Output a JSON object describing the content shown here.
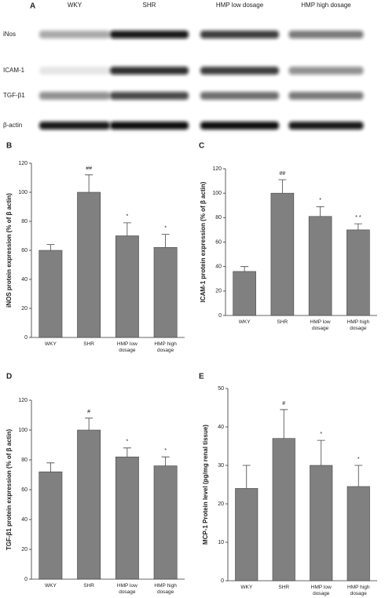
{
  "blot": {
    "panel": "A",
    "columns": [
      "WKY",
      "SHR",
      "HMP low dosage",
      "HMP high dosage"
    ],
    "rows": [
      "iNos",
      "ICAM-1",
      "TGF-β1",
      "β-actin"
    ]
  },
  "chart_data": [
    {
      "type": "bar",
      "panel": "B",
      "ylabel": "iNOS protein expression (% of β actin)",
      "categories": [
        "WKY",
        "SHR",
        "HMP low dosage",
        "HMP high dosage"
      ],
      "values": [
        60,
        100,
        70,
        62
      ],
      "errors": [
        4,
        12,
        9,
        9
      ],
      "annotations": [
        null,
        "##",
        "*",
        "*"
      ],
      "color": "#808080",
      "ylim": [
        0,
        120
      ],
      "yticks": [
        0,
        20,
        40,
        60,
        80,
        100,
        120
      ]
    },
    {
      "type": "bar",
      "panel": "C",
      "ylabel": "ICAM-1 protein expression (% of β actin)",
      "categories": [
        "WKY",
        "SHR",
        "HMP low dosage",
        "HMP high dosage"
      ],
      "values": [
        36,
        100,
        81,
        70
      ],
      "errors": [
        4,
        11,
        8,
        5
      ],
      "annotations": [
        null,
        "##",
        "*",
        "* *"
      ],
      "color": "#808080",
      "ylim": [
        0,
        120
      ],
      "yticks": [
        0,
        20,
        40,
        60,
        80,
        100,
        120
      ]
    },
    {
      "type": "bar",
      "panel": "D",
      "ylabel": "TGF-β1 protein expression (% of β actin)",
      "categories": [
        "WKY",
        "SHR",
        "HMP low dosage",
        "HMP high dosage"
      ],
      "values": [
        72,
        100,
        82,
        76
      ],
      "errors": [
        6,
        8,
        6,
        6
      ],
      "annotations": [
        null,
        "#",
        "*",
        "*"
      ],
      "color": "#808080",
      "ylim": [
        0,
        120
      ],
      "yticks": [
        0,
        20,
        40,
        60,
        80,
        100,
        120
      ]
    },
    {
      "type": "bar",
      "panel": "E",
      "ylabel": "MCP-1 Protein level (pg/mg renal tissue)",
      "categories": [
        "WKY",
        "SHR",
        "HMP low dosage",
        "HMP high dosage"
      ],
      "values": [
        24,
        37,
        30,
        24.5
      ],
      "errors": [
        6,
        7.5,
        6.5,
        5.5
      ],
      "annotations": [
        null,
        "#",
        "*",
        "*"
      ],
      "color": "#808080",
      "ylim": [
        0,
        50
      ],
      "yticks": [
        0,
        10,
        20,
        30,
        40,
        50
      ]
    }
  ]
}
